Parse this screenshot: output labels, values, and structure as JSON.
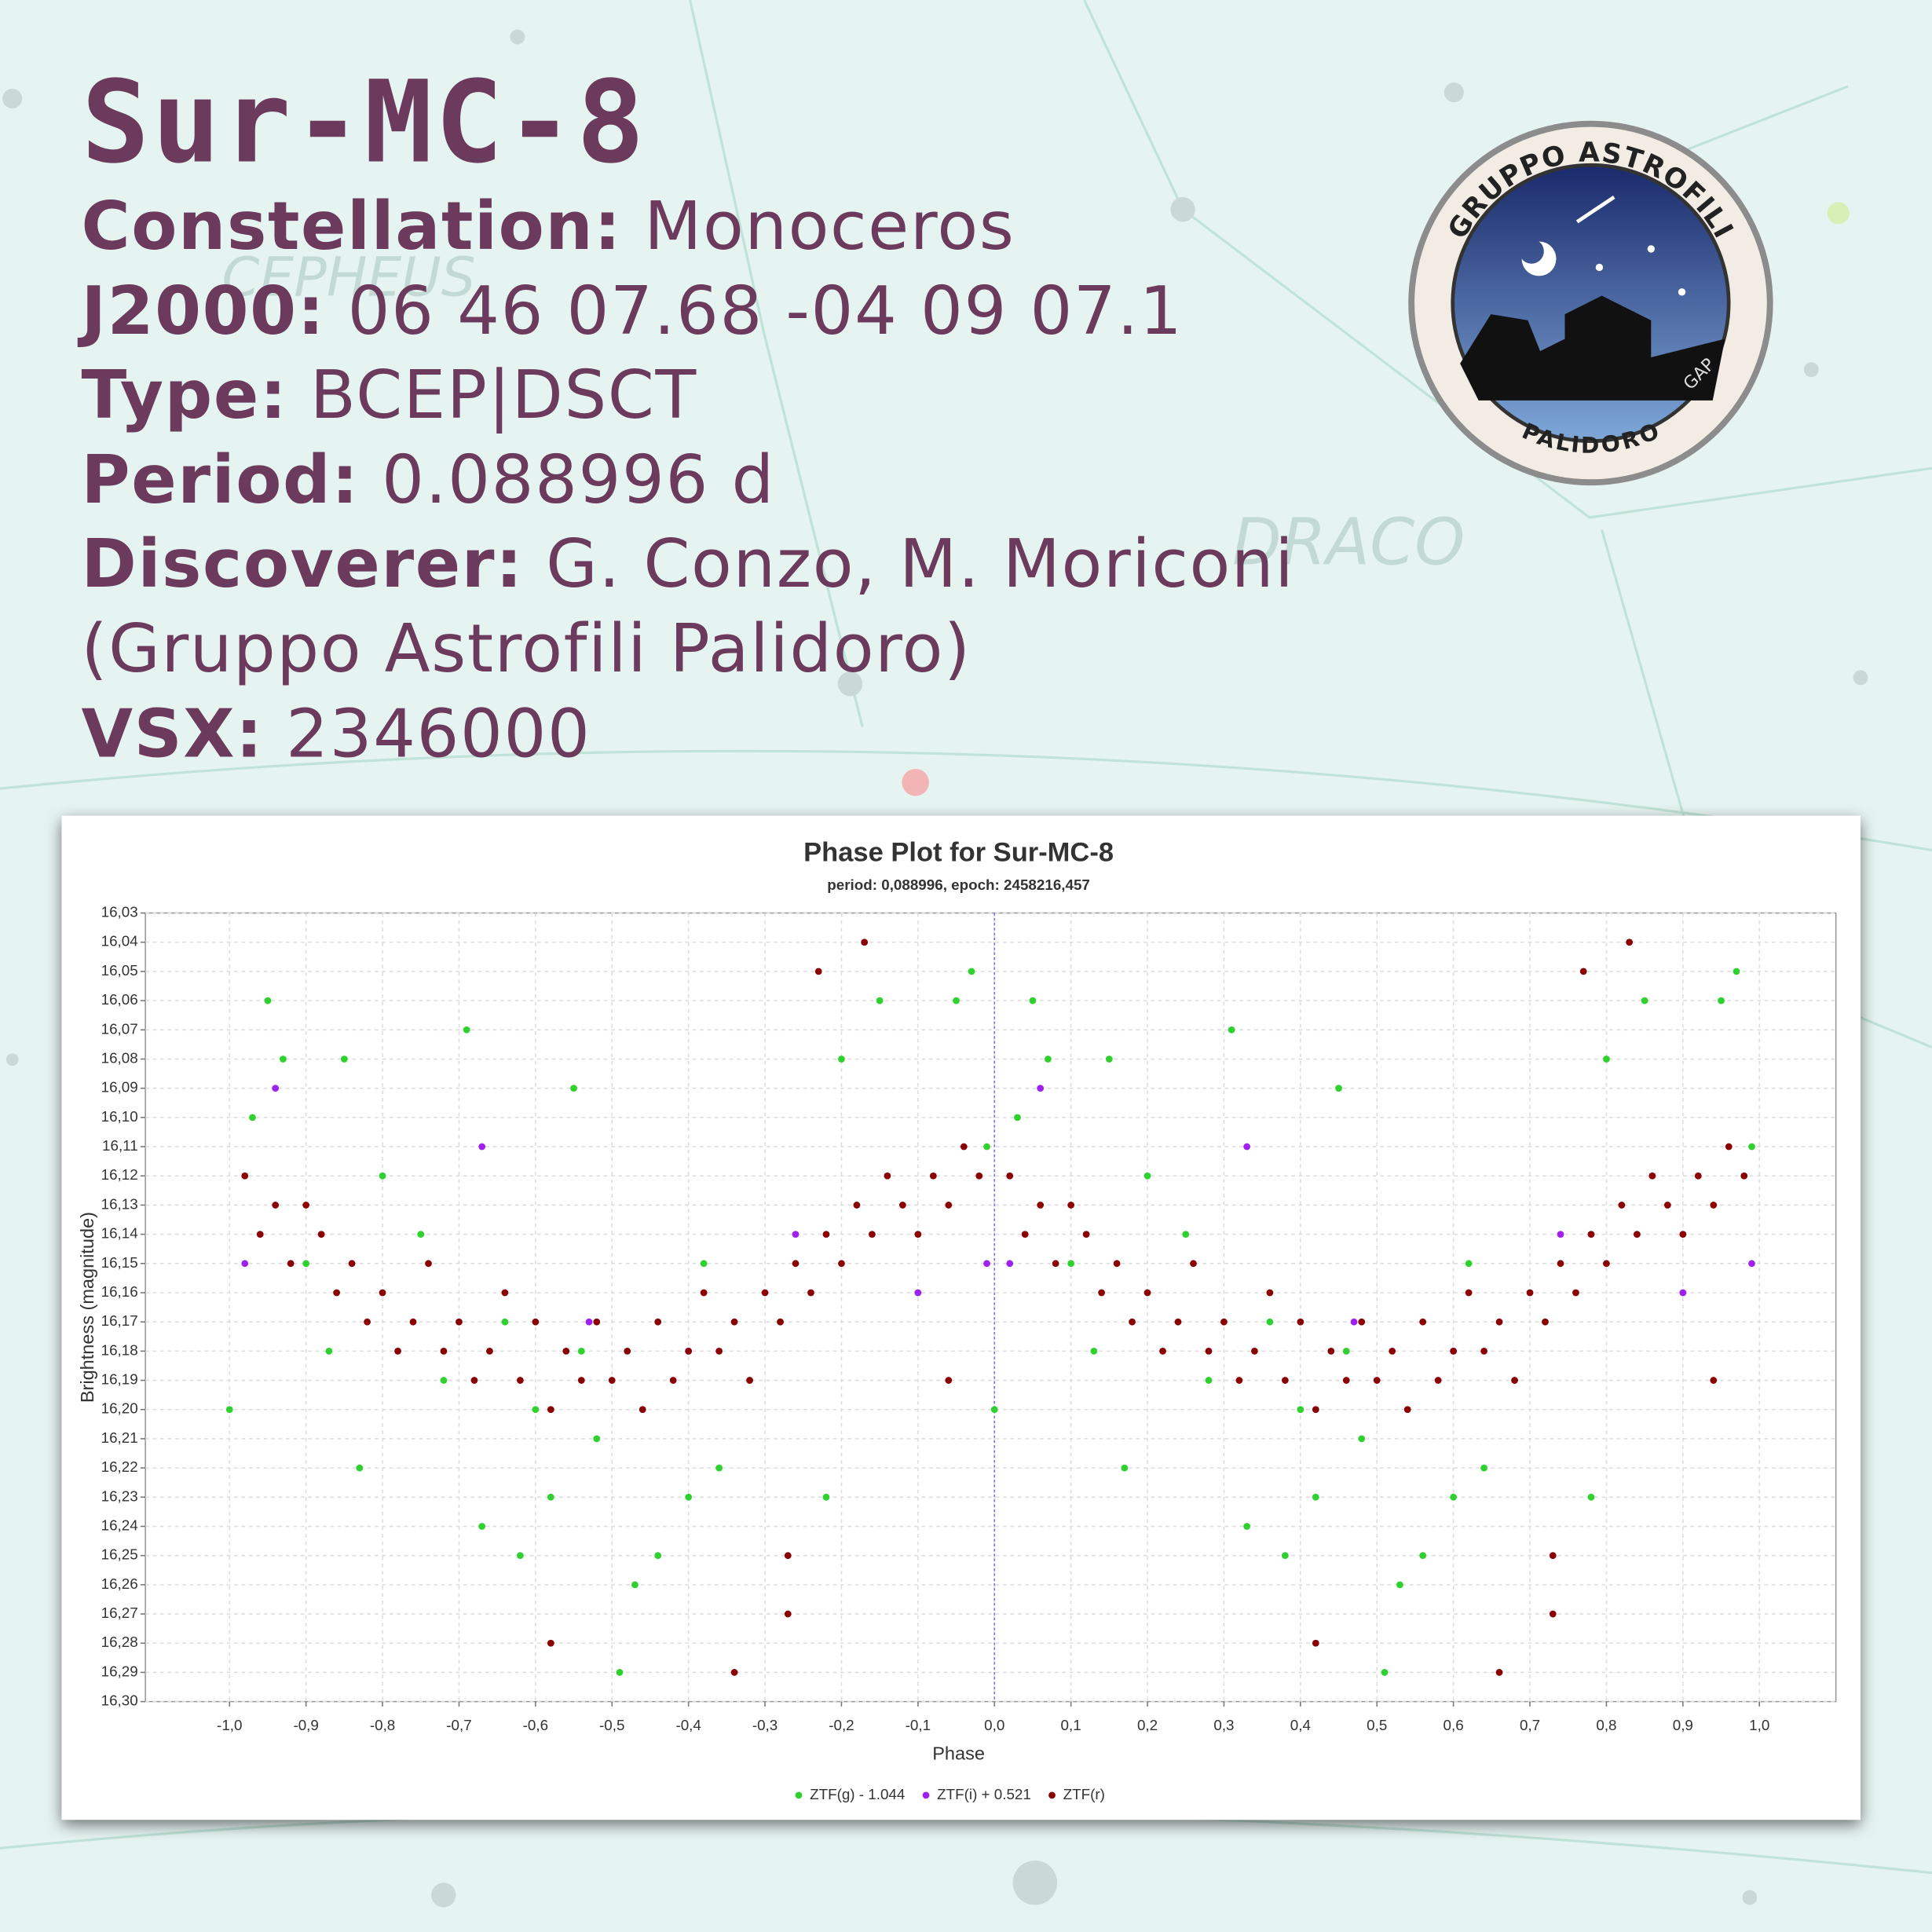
{
  "header": {
    "title": "Sur-MC-8",
    "fields": [
      {
        "label": "Constellation:",
        "value": "Monoceros"
      },
      {
        "label": "J2000:",
        "value": "06 46 07.68 -04 09 07.1"
      },
      {
        "label": "Type:",
        "value": "BCEP|DSCT"
      },
      {
        "label": "Period:",
        "value": "0.088996 d"
      },
      {
        "label": "Discoverer:",
        "value": "G. Conzo, M. Moriconi"
      },
      {
        "label": "",
        "value": "(Gruppo Astrofili Palidoro)"
      },
      {
        "label": "VSX:",
        "value": "2346000"
      }
    ]
  },
  "background": {
    "labels": [
      "CEPHEUS",
      "DRACO"
    ]
  },
  "logo": {
    "top": "GRUPPO ASTROFILI",
    "bottom": "PALIDORO",
    "side": "GAP"
  },
  "chart_data": {
    "type": "scatter",
    "title": "Phase Plot for Sur-MC-8",
    "subtitle": "period: 0,088996, epoch: 2458216,457",
    "xlabel": "Phase",
    "ylabel": "Brightness (magnitude)",
    "xlim": [
      -1.11,
      1.1
    ],
    "ylim": [
      16.3,
      16.03
    ],
    "grid": true,
    "xticks": [
      {
        "value": -1.0,
        "label": "-1,0"
      },
      {
        "value": -0.9,
        "label": "-0,9"
      },
      {
        "value": -0.8,
        "label": "-0,8"
      },
      {
        "value": -0.7,
        "label": "-0,7"
      },
      {
        "value": -0.6,
        "label": "-0,6"
      },
      {
        "value": -0.5,
        "label": "-0,5"
      },
      {
        "value": -0.4,
        "label": "-0,4"
      },
      {
        "value": -0.3,
        "label": "-0,3"
      },
      {
        "value": -0.2,
        "label": "-0,2"
      },
      {
        "value": -0.1,
        "label": "-0,1"
      },
      {
        "value": 0.0,
        "label": "0,0"
      },
      {
        "value": 0.1,
        "label": "0,1"
      },
      {
        "value": 0.2,
        "label": "0,2"
      },
      {
        "value": 0.3,
        "label": "0,3"
      },
      {
        "value": 0.4,
        "label": "0,4"
      },
      {
        "value": 0.5,
        "label": "0,5"
      },
      {
        "value": 0.6,
        "label": "0,6"
      },
      {
        "value": 0.7,
        "label": "0,7"
      },
      {
        "value": 0.8,
        "label": "0,8"
      },
      {
        "value": 0.9,
        "label": "0,9"
      },
      {
        "value": 1.0,
        "label": "1,0"
      }
    ],
    "yticks": [
      {
        "value": 16.03,
        "label": "16,03"
      },
      {
        "value": 16.04,
        "label": "16,04"
      },
      {
        "value": 16.05,
        "label": "16,05"
      },
      {
        "value": 16.06,
        "label": "16,06"
      },
      {
        "value": 16.07,
        "label": "16,07"
      },
      {
        "value": 16.08,
        "label": "16,08"
      },
      {
        "value": 16.09,
        "label": "16,09"
      },
      {
        "value": 16.1,
        "label": "16,10"
      },
      {
        "value": 16.11,
        "label": "16,11"
      },
      {
        "value": 16.12,
        "label": "16,12"
      },
      {
        "value": 16.13,
        "label": "16,13"
      },
      {
        "value": 16.14,
        "label": "16,14"
      },
      {
        "value": 16.15,
        "label": "16,15"
      },
      {
        "value": 16.16,
        "label": "16,16"
      },
      {
        "value": 16.17,
        "label": "16,17"
      },
      {
        "value": 16.18,
        "label": "16,18"
      },
      {
        "value": 16.19,
        "label": "16,19"
      },
      {
        "value": 16.2,
        "label": "16,20"
      },
      {
        "value": 16.21,
        "label": "16,21"
      },
      {
        "value": 16.22,
        "label": "16,22"
      },
      {
        "value": 16.23,
        "label": "16,23"
      },
      {
        "value": 16.24,
        "label": "16,24"
      },
      {
        "value": 16.25,
        "label": "16,25"
      },
      {
        "value": 16.26,
        "label": "16,26"
      },
      {
        "value": 16.27,
        "label": "16,27"
      },
      {
        "value": 16.28,
        "label": "16,28"
      },
      {
        "value": 16.29,
        "label": "16,29"
      },
      {
        "value": 16.3,
        "label": "16,30"
      }
    ],
    "series": [
      {
        "name": "ZTF(g) - 1.044",
        "color": "#2fd12f",
        "x": [
          0,
          0.03,
          0.05,
          0.07,
          0.1,
          0.13,
          0.15,
          0.17,
          0.2,
          0.25,
          0.28,
          0.31,
          0.33,
          0.36,
          0.38,
          0.4,
          0.42,
          0.45,
          0.48,
          0.51,
          0.53,
          0.56,
          0.6,
          0.64,
          0.68,
          0.72,
          0.78,
          0.8,
          0.85,
          0.9,
          0.95,
          0.97,
          0.99,
          0.62,
          0.46,
          -1.0,
          -0.97,
          -0.95,
          -0.93,
          -0.9,
          -0.87,
          -0.85,
          -0.83,
          -0.8,
          -0.75,
          -0.72,
          -0.69,
          -0.67,
          -0.64,
          -0.62,
          -0.6,
          -0.58,
          -0.55,
          -0.52,
          -0.49,
          -0.47,
          -0.44,
          -0.4,
          -0.36,
          -0.32,
          -0.28,
          -0.22,
          -0.2,
          -0.15,
          -0.1,
          -0.05,
          -0.03,
          -0.01,
          -0.38,
          -0.54
        ],
        "values": [
          16.2,
          16.1,
          16.06,
          16.08,
          16.15,
          16.18,
          16.08,
          16.22,
          16.12,
          16.14,
          16.19,
          16.07,
          16.24,
          16.17,
          16.25,
          16.2,
          16.23,
          16.09,
          16.21,
          16.29,
          16.26,
          16.25,
          16.23,
          16.22,
          16.19,
          16.17,
          16.23,
          16.08,
          16.06,
          16.16,
          16.06,
          16.05,
          16.11,
          16.15,
          16.18,
          16.2,
          16.1,
          16.06,
          16.08,
          16.15,
          16.18,
          16.08,
          16.22,
          16.12,
          16.14,
          16.19,
          16.07,
          16.24,
          16.17,
          16.25,
          16.2,
          16.23,
          16.09,
          16.21,
          16.29,
          16.26,
          16.25,
          16.23,
          16.22,
          16.19,
          16.17,
          16.23,
          16.08,
          16.06,
          16.16,
          16.06,
          16.05,
          16.11,
          16.15,
          16.18
        ]
      },
      {
        "name": "ZTF(i) + 0.521",
        "color": "#a020f0",
        "x": [
          0.02,
          0.06,
          0.33,
          0.47,
          0.6,
          0.74,
          0.9,
          0.99,
          -0.98,
          -0.94,
          -0.67,
          -0.53,
          -0.4,
          -0.26,
          -0.1,
          -0.01
        ],
        "values": [
          16.15,
          16.09,
          16.11,
          16.17,
          16.18,
          16.14,
          16.16,
          16.15,
          16.15,
          16.09,
          16.11,
          16.17,
          16.18,
          16.14,
          16.16,
          16.15
        ]
      },
      {
        "name": "ZTF(r)",
        "color": "#8b0000",
        "x": [
          0.02,
          0.04,
          0.06,
          0.08,
          0.1,
          0.12,
          0.14,
          0.16,
          0.18,
          0.2,
          0.22,
          0.24,
          0.26,
          0.28,
          0.3,
          0.32,
          0.34,
          0.36,
          0.38,
          0.4,
          0.42,
          0.44,
          0.46,
          0.48,
          0.5,
          0.52,
          0.54,
          0.56,
          0.58,
          0.6,
          0.62,
          0.64,
          0.66,
          0.68,
          0.7,
          0.72,
          0.74,
          0.76,
          0.78,
          0.8,
          0.82,
          0.84,
          0.86,
          0.88,
          0.9,
          0.92,
          0.94,
          0.96,
          0.98,
          0.42,
          0.66,
          0.73,
          0.73,
          0.83,
          0.77,
          0.94,
          -0.98,
          -0.96,
          -0.94,
          -0.92,
          -0.9,
          -0.88,
          -0.86,
          -0.84,
          -0.82,
          -0.8,
          -0.78,
          -0.76,
          -0.74,
          -0.72,
          -0.7,
          -0.68,
          -0.66,
          -0.64,
          -0.62,
          -0.6,
          -0.58,
          -0.56,
          -0.54,
          -0.52,
          -0.5,
          -0.48,
          -0.46,
          -0.44,
          -0.42,
          -0.4,
          -0.38,
          -0.36,
          -0.34,
          -0.32,
          -0.3,
          -0.28,
          -0.26,
          -0.24,
          -0.22,
          -0.2,
          -0.18,
          -0.16,
          -0.14,
          -0.12,
          -0.1,
          -0.08,
          -0.06,
          -0.04,
          -0.02,
          -0.58,
          -0.34,
          -0.27,
          -0.27,
          -0.17,
          -0.23,
          -0.06
        ],
        "values": [
          16.12,
          16.14,
          16.13,
          16.15,
          16.13,
          16.14,
          16.16,
          16.15,
          16.17,
          16.16,
          16.18,
          16.17,
          16.15,
          16.18,
          16.17,
          16.19,
          16.18,
          16.16,
          16.19,
          16.17,
          16.2,
          16.18,
          16.19,
          16.17,
          16.19,
          16.18,
          16.2,
          16.17,
          16.19,
          16.18,
          16.16,
          16.18,
          16.17,
          16.19,
          16.16,
          16.17,
          16.15,
          16.16,
          16.14,
          16.15,
          16.13,
          16.14,
          16.12,
          16.13,
          16.14,
          16.12,
          16.13,
          16.11,
          16.12,
          16.28,
          16.29,
          16.27,
          16.25,
          16.04,
          16.05,
          16.19,
          16.12,
          16.14,
          16.13,
          16.15,
          16.13,
          16.14,
          16.16,
          16.15,
          16.17,
          16.16,
          16.18,
          16.17,
          16.15,
          16.18,
          16.17,
          16.19,
          16.18,
          16.16,
          16.19,
          16.17,
          16.2,
          16.18,
          16.19,
          16.17,
          16.19,
          16.18,
          16.2,
          16.17,
          16.19,
          16.18,
          16.16,
          16.18,
          16.17,
          16.19,
          16.16,
          16.17,
          16.15,
          16.16,
          16.14,
          16.15,
          16.13,
          16.14,
          16.12,
          16.13,
          16.14,
          16.12,
          16.13,
          16.11,
          16.12,
          16.28,
          16.29,
          16.27,
          16.25,
          16.04,
          16.05,
          16.19
        ]
      }
    ]
  }
}
